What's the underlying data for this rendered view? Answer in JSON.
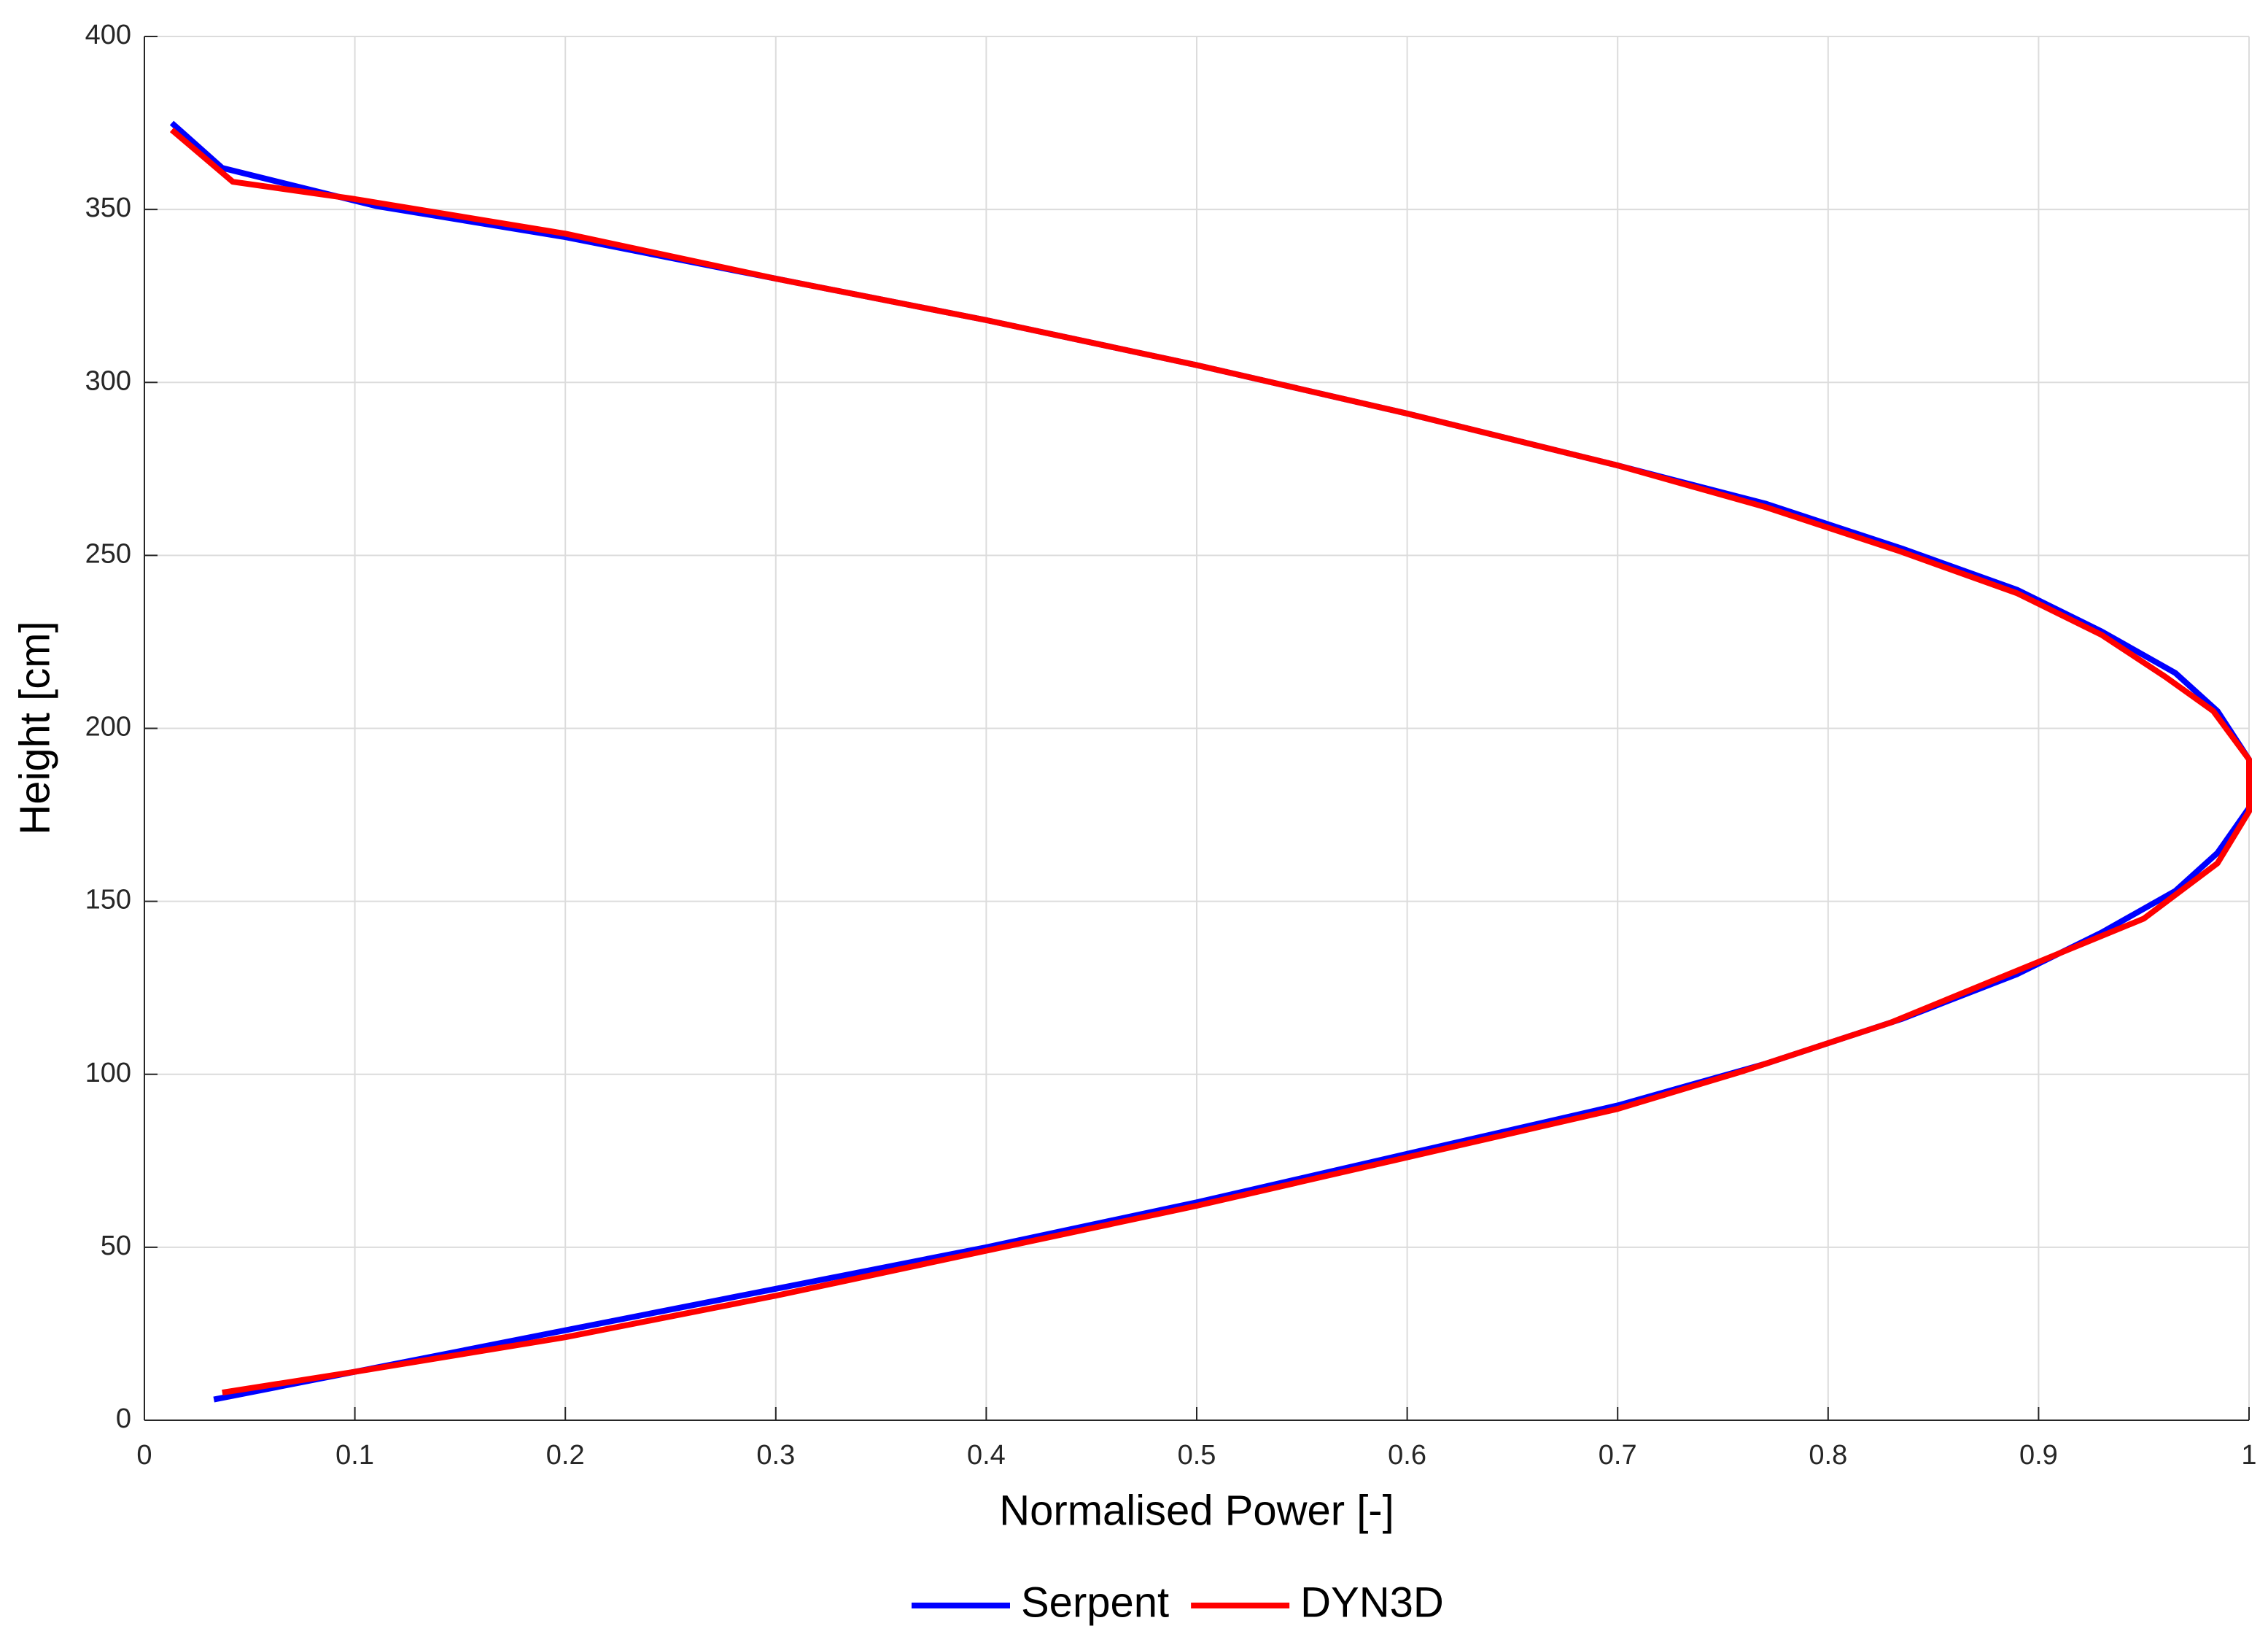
{
  "chart_data": {
    "type": "line",
    "xlabel": "Normalised Power [-]",
    "ylabel": "Height [cm]",
    "xlim": [
      0,
      1
    ],
    "ylim": [
      0,
      400
    ],
    "xticks": [
      0,
      0.1,
      0.2,
      0.3,
      0.4,
      0.5,
      0.6,
      0.7,
      0.8,
      0.9,
      1
    ],
    "yticks": [
      0,
      50,
      100,
      150,
      200,
      250,
      300,
      350,
      400
    ],
    "grid": true,
    "legend": "bottom",
    "series": [
      {
        "name": "Serpent",
        "color": "#0000ff",
        "x": [
          0.013,
          0.037,
          0.11,
          0.2,
          0.3,
          0.4,
          0.5,
          0.6,
          0.7,
          0.77,
          0.835,
          0.89,
          0.93,
          0.965,
          0.985,
          1.0,
          1.0,
          0.985,
          0.965,
          0.93,
          0.89,
          0.835,
          0.77,
          0.7,
          0.6,
          0.5,
          0.4,
          0.3,
          0.2,
          0.1,
          0.033
        ],
        "y": [
          375,
          362,
          351,
          342,
          330,
          318,
          305,
          291,
          276,
          265,
          252,
          240,
          228,
          216,
          205,
          191,
          177,
          164,
          153,
          141,
          129,
          116,
          103,
          91,
          77,
          63,
          50,
          38,
          26,
          14,
          6
        ]
      },
      {
        "name": "DYN3D",
        "color": "#ff0000",
        "x": [
          0.013,
          0.042,
          0.1,
          0.2,
          0.3,
          0.4,
          0.5,
          0.6,
          0.7,
          0.77,
          0.835,
          0.89,
          0.93,
          0.96,
          0.983,
          1.0,
          1.0,
          0.985,
          0.95,
          0.89,
          0.83,
          0.76,
          0.7,
          0.6,
          0.5,
          0.4,
          0.3,
          0.2,
          0.1,
          0.037
        ],
        "y": [
          373,
          358,
          353,
          343,
          330,
          318,
          305,
          291,
          276,
          264,
          251,
          239,
          227,
          215,
          205,
          191,
          176,
          161,
          145,
          130,
          115,
          101,
          90,
          76,
          62,
          49,
          36,
          24,
          14,
          8
        ]
      }
    ]
  }
}
